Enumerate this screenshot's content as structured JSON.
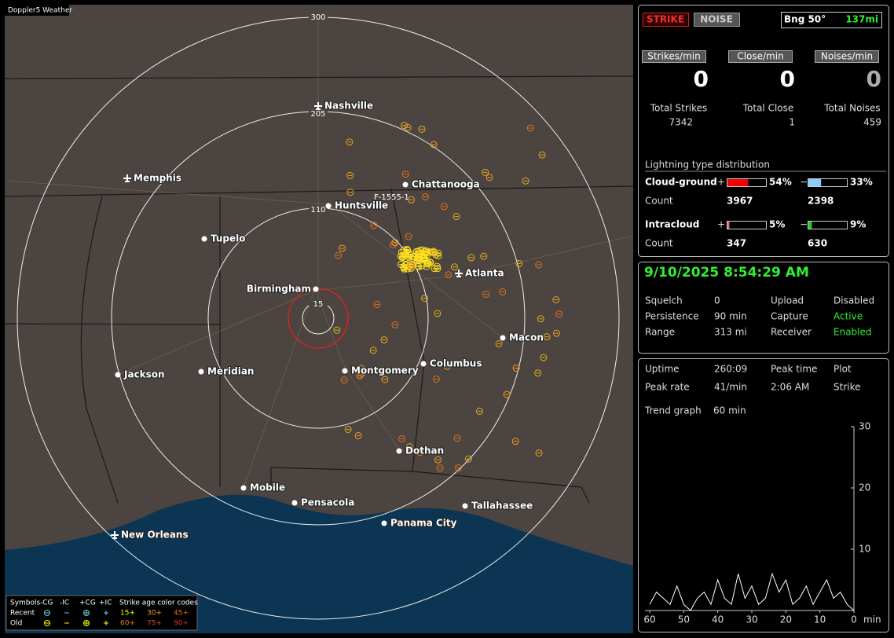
{
  "window_title": "Doppler5 Weather",
  "map": {
    "rings": [
      300,
      205,
      110,
      15
    ],
    "cities": [
      {
        "label": "Nashville"
      },
      {
        "label": "Memphis"
      },
      {
        "label": "Chattanooga"
      },
      {
        "label": "Huntsville"
      },
      {
        "label": "Tupelo"
      },
      {
        "label": "Birmingham"
      },
      {
        "label": "Atlanta"
      },
      {
        "label": "Macon"
      },
      {
        "label": "Jackson"
      },
      {
        "label": "Meridian"
      },
      {
        "label": "Montgomery"
      },
      {
        "label": "Columbus"
      },
      {
        "label": "Dothan"
      },
      {
        "label": "Mobile"
      },
      {
        "label": "Pensacola"
      },
      {
        "label": "Tallahassee"
      },
      {
        "label": "Panama City"
      },
      {
        "label": "New Orleans"
      }
    ],
    "storm_id": "F-1555-1"
  },
  "legend": {
    "symbols": "Symbols",
    "types": [
      "-CG",
      "-IC",
      "+CG",
      "+IC"
    ],
    "age_title": "Strike age color codes",
    "recent": "Recent",
    "old": "Old",
    "recent_ages": [
      "15+",
      "30+",
      "45+"
    ],
    "old_ages": [
      "60+",
      "75+",
      "90+"
    ]
  },
  "status": {
    "strike": "STRIKE",
    "noise": "NOISE",
    "bearing": "Bng 50°",
    "distance": "137mi",
    "rates": [
      {
        "label": "Strikes/min",
        "value": 0
      },
      {
        "label": "Close/min",
        "value": 0
      },
      {
        "label": "Noises/min",
        "value": 0
      }
    ],
    "totals": [
      {
        "label": "Total Strikes",
        "value": 7342
      },
      {
        "label": "Total Close",
        "value": 1
      },
      {
        "label": "Total Noises",
        "value": 459
      }
    ]
  },
  "distribution": {
    "title": "Lightning type distribution",
    "count_label": "Count",
    "plus": "+",
    "minus": "−",
    "rows": [
      {
        "label": "Cloud-ground",
        "plus_percent": {
          "value": 54,
          "label": "54%"
        },
        "minus_percent": {
          "value": 33,
          "label": "33%"
        },
        "plus_count": 3967,
        "minus_count": 2398
      },
      {
        "label": "Intracloud",
        "plus_percent": {
          "value": 5,
          "label": "5%"
        },
        "minus_percent": {
          "value": 9,
          "label": "9%"
        },
        "plus_count": 347,
        "minus_count": 630
      }
    ]
  },
  "receiver": {
    "datetime": "9/10/2025 8:54:29 AM",
    "rows": [
      [
        "Squelch",
        0,
        "Upload",
        "Disabled"
      ],
      [
        "Persistence",
        "90 min",
        "Capture",
        "Active"
      ],
      [
        "Range",
        "313 mi",
        "Receiver",
        "Enabled"
      ]
    ]
  },
  "stats": {
    "rows": [
      [
        "Uptime",
        "260:09",
        "Peak time",
        "Plot"
      ],
      [
        "Peak rate",
        "41/min",
        "2:06 AM",
        "Strike"
      ]
    ],
    "trend_label": "Trend graph",
    "trend_window": "60 min"
  },
  "trend_graph": {
    "ylim": [
      0,
      30
    ],
    "yticks": [
      10,
      20,
      30
    ],
    "xlim": [
      60,
      0
    ],
    "xticks": [
      60,
      50,
      40,
      30,
      20,
      10,
      0
    ],
    "x_unit": "min",
    "x": [
      60,
      58,
      56,
      54,
      52,
      50,
      48,
      46,
      44,
      42,
      40,
      38,
      36,
      34,
      32,
      30,
      28,
      26,
      24,
      22,
      20,
      18,
      16,
      14,
      12,
      10,
      8,
      6,
      4,
      2,
      0
    ],
    "values": [
      1,
      3,
      2,
      1,
      4,
      1,
      0,
      2,
      3,
      1,
      5,
      2,
      1,
      6,
      2,
      4,
      1,
      2,
      6,
      3,
      5,
      1,
      2,
      4,
      1,
      3,
      5,
      2,
      3,
      1,
      0
    ]
  }
}
